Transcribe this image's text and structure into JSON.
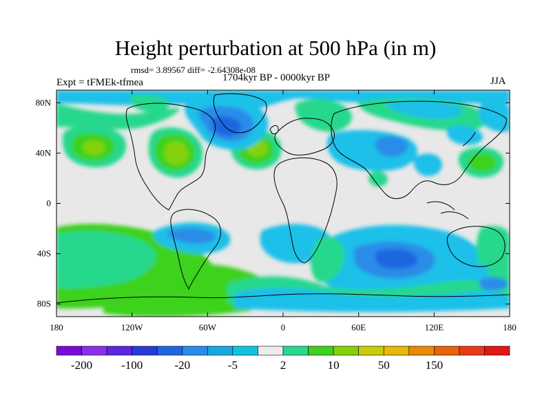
{
  "chart_data": {
    "type": "heatmap",
    "title": "Height perturbation at 500 hPa (in m)",
    "subtitle_stats": "rmsd= 3.89567  diff= -2.64308e-08",
    "period": "1704kyr BP - 0000kyr BP",
    "experiment": "Expt = tFMEk-tfmea",
    "season": "JJA",
    "map_projection": "cylindrical equidistant",
    "lon_range": [
      -180,
      180
    ],
    "lat_range": [
      -90,
      90
    ],
    "lon_ticks": [
      {
        "value": -180,
        "label": "180"
      },
      {
        "value": -120,
        "label": "120W"
      },
      {
        "value": -60,
        "label": "60W"
      },
      {
        "value": 0,
        "label": "0"
      },
      {
        "value": 60,
        "label": "60E"
      },
      {
        "value": 120,
        "label": "120E"
      },
      {
        "value": 180,
        "label": "180"
      }
    ],
    "lat_ticks": [
      {
        "value": 80,
        "label": "80N"
      },
      {
        "value": 40,
        "label": "40N"
      },
      {
        "value": 0,
        "label": "0"
      },
      {
        "value": -40,
        "label": "40S"
      },
      {
        "value": -80,
        "label": "80S"
      }
    ],
    "colorbar": {
      "colors": [
        "#7a0ad8",
        "#8a30e8",
        "#5a28e0",
        "#2a3ad8",
        "#1e66e0",
        "#2a8ce8",
        "#18a8e0",
        "#10c4e0",
        "#ececec",
        "#28d88c",
        "#3cd21e",
        "#84d20a",
        "#c8cc0a",
        "#e8b806",
        "#e88a06",
        "#e8620a",
        "#e83a14",
        "#e01818"
      ],
      "labels": [
        {
          "after_box": 1,
          "text": "-200"
        },
        {
          "after_box": 3,
          "text": "-100"
        },
        {
          "after_box": 5,
          "text": "-20"
        },
        {
          "after_box": 7,
          "text": "-5"
        },
        {
          "after_box": 9,
          "text": "2"
        },
        {
          "after_box": 11,
          "text": "10"
        },
        {
          "after_box": 13,
          "text": "50"
        },
        {
          "after_box": 15,
          "text": "150"
        }
      ]
    },
    "background_level": {
      "range": [
        -2,
        2
      ],
      "color": "#e8e8e8"
    },
    "anomaly_features": [
      {
        "name": "pacific-north-positive",
        "lon": -150,
        "lat": 43,
        "value": 20
      },
      {
        "name": "north-america-positive",
        "lon": -95,
        "lat": 41,
        "value": 20
      },
      {
        "name": "north-atlantic-positive",
        "lon": -22,
        "lat": 41,
        "value": 20
      },
      {
        "name": "greenland-negative",
        "lon": -50,
        "lat": 62,
        "value": -20
      },
      {
        "name": "arctic-negative",
        "lon": -70,
        "lat": 80,
        "value": -10
      },
      {
        "name": "arctic-asia-negative",
        "lon": 75,
        "lat": 78,
        "value": -5
      },
      {
        "name": "europe-positive",
        "lon": 20,
        "lat": 70,
        "value": 8
      },
      {
        "name": "siberia-positive",
        "lon": 110,
        "lat": 67,
        "value": 8
      },
      {
        "name": "east-europe-negative",
        "lon": 40,
        "lat": 50,
        "value": -10
      },
      {
        "name": "japan-east-positive",
        "lon": 160,
        "lat": 40,
        "value": 10
      },
      {
        "name": "southern-indian-negative",
        "lon": 75,
        "lat": -48,
        "value": -20
      },
      {
        "name": "south-atlantic-positive",
        "lon": -60,
        "lat": -45,
        "value": 10
      },
      {
        "name": "south-pacific-positive",
        "lon": -150,
        "lat": -38,
        "value": 8
      },
      {
        "name": "antarctic-negative",
        "lon": 40,
        "lat": -75,
        "value": -5
      }
    ]
  }
}
